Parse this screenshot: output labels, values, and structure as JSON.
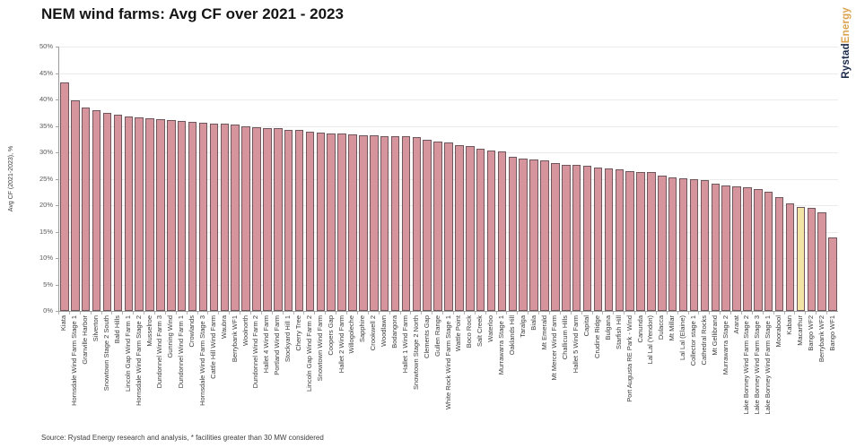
{
  "header": {
    "title": "NEM wind farms: Avg CF over 2021 - 2023"
  },
  "logo": {
    "part1": "Rystad",
    "part2": "Energy"
  },
  "source": "Source: Rystad Energy research and analysis, * facilities greater than 30 MW considered",
  "chart_data": {
    "type": "bar",
    "title": "NEM wind farms: Avg CF over 2021 - 2023",
    "xlabel": "",
    "ylabel": "Avg CF (2021-2023), %",
    "ylim": [
      0,
      50
    ],
    "ytick_step": 5,
    "yticks": [
      "0%",
      "5%",
      "10%",
      "15%",
      "20%",
      "25%",
      "30%",
      "35%",
      "40%",
      "45%",
      "50%"
    ],
    "grid": "horizontal",
    "legend": "none",
    "highlighted_category": "Macarthur",
    "colors": {
      "bar_fill": "#d6949c",
      "bar_border": "#6e585e",
      "highlight_fill": "#f2e4a4",
      "gridline": "#ebebeb",
      "axis": "#9b9b9b",
      "logo_rystad": "#1b2a4a",
      "logo_energy": "#dba24f"
    },
    "categories": [
      "Kiata",
      "Hornsdale Wind Farm Stage 1",
      "Granville Harbor",
      "Silverton",
      "Snowtown Stage 2 South",
      "Bald Hills",
      "Lincoln Gap Wind Farm 1",
      "Hornsdale Wind Farm Stage 2",
      "Musselroe",
      "Dundonnel Wind Farm 3",
      "Gunning Wind",
      "Dundonnel Wind Farm 1",
      "Crowlands",
      "Hornsdale Wind Farm Stage 3",
      "Cattle Hill Wind Farm",
      "Waubra",
      "Berrybank WF1",
      "Woolnorth",
      "Dundonnel Wind Farm 2",
      "Hallet 4 Wind Farm",
      "Portland Wind Farm",
      "Stockyard Hill 1",
      "Cherry Tree",
      "Lincoln Gap Wind Farm 2",
      "Snowtown Wind Farm",
      "Coopers Gap",
      "Hallet 2 Wind Farm",
      "Willogoleche",
      "Sapphire",
      "Crookwell 2",
      "Woodlawn",
      "Bodangora",
      "Hallet 1 Wind Farm",
      "Snowtown Stage 2 North",
      "Clements Gap",
      "Gullen Range",
      "White Rock Wind Farm Stage 1",
      "Wattle Point",
      "Boco Rock",
      "Salt Creek",
      "Waterloo",
      "Murrawarra Stage 1",
      "Oaklands Hill",
      "Taralga",
      "Biala",
      "Mt Emerald",
      "Mt Mercer Wind Farm",
      "Challicum Hills",
      "Hallet 5 Wind Farm",
      "Capital",
      "Crudine Ridge",
      "Bulgana",
      "Starfish Hill",
      "Port Augusta RE Park - Wind",
      "Canunda",
      "Lal Lal (Yendon)",
      "Dulacca",
      "Mt Millar",
      "Lal Lal (Elaine)",
      "Collector stage 1",
      "Cathedral Rocks",
      "Mt Gellibrand",
      "Murrawarra Stage 2",
      "Ararat",
      "Lake Bonney Wind Farm Stage 2",
      "Lake Bonney Wind Farm Stage 3",
      "Lake Bonney Wind Farm Stage 1",
      "Moorabool",
      "Kaban",
      "Macarthur",
      "Bango WF2",
      "Berrybank WF2",
      "Bango WF1"
    ],
    "values": [
      43.3,
      39.8,
      38.5,
      37.9,
      37.4,
      37.1,
      36.7,
      36.6,
      36.5,
      36.3,
      36.1,
      35.9,
      35.7,
      35.6,
      35.5,
      35.4,
      35.2,
      35.0,
      34.8,
      34.6,
      34.5,
      34.3,
      34.2,
      33.9,
      33.7,
      33.6,
      33.5,
      33.4,
      33.3,
      33.2,
      33.1,
      33.0,
      33.0,
      32.8,
      32.4,
      32.1,
      31.9,
      31.4,
      31.2,
      30.7,
      30.3,
      30.2,
      29.1,
      28.9,
      28.7,
      28.4,
      27.9,
      27.7,
      27.6,
      27.4,
      27.1,
      26.9,
      26.7,
      26.5,
      26.3,
      26.2,
      25.6,
      25.3,
      25.1,
      25.0,
      24.7,
      24.1,
      23.8,
      23.6,
      23.4,
      23.1,
      22.6,
      21.6,
      20.3,
      19.7,
      19.5,
      18.6,
      13.9
    ]
  }
}
